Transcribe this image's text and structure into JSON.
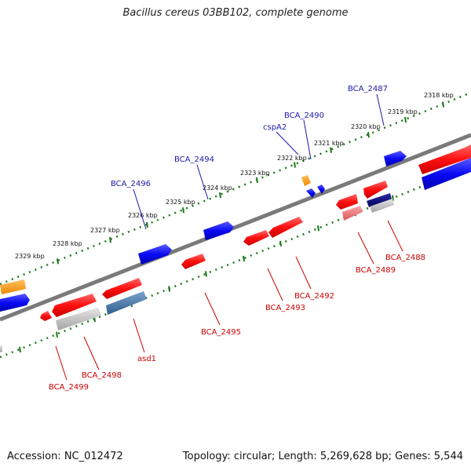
{
  "title": "Bacillus cereus 03BB102, complete genome",
  "footer": {
    "accession": "Accession: NC_012472",
    "summary": "Topology: circular; Length: 5,269,628 bp; Genes: 5,544"
  },
  "colors": {
    "backbone": "#808080",
    "forward_gene": "#0000ee",
    "reverse_gene": "#ee0000",
    "forward_label": "#1a1aaa",
    "reverse_label": "#cc0000",
    "tick": "#1a7a1a",
    "orange_gene": "#ff9900",
    "grey_gene": "#bbbbbb",
    "steel_gene": "#4477aa",
    "navy_gene": "#000088",
    "pink_gene": "#ee7777"
  },
  "kbp_labels": [
    "2318 kbp",
    "2319 kbp",
    "2320 kbp",
    "2321 kbp",
    "2322 kbp",
    "2323 kbp",
    "2324 kbp",
    "2325 kbp",
    "2326 kbp",
    "2327 kbp",
    "2328 kbp",
    "2329 kbp"
  ],
  "forward_gene_labels": [
    "BCA_2487",
    "BCA_2490",
    "cspA2",
    "BCA_2494",
    "BCA_2496"
  ],
  "reverse_gene_labels": [
    "BCA_2488",
    "BCA_2489",
    "BCA_2492",
    "BCA_2493",
    "BCA_2495",
    "asd1",
    "BCA_2498",
    "BCA_2499"
  ]
}
